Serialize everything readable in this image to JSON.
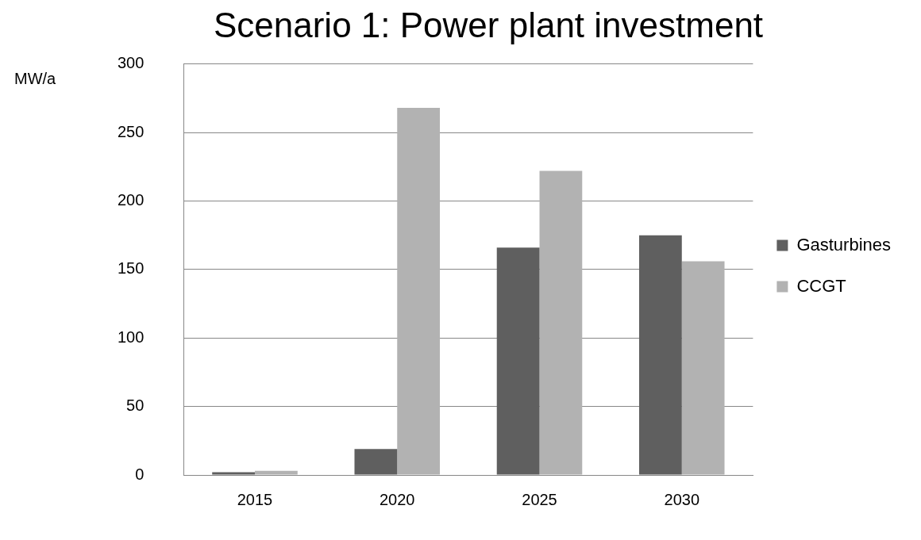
{
  "chart_data": {
    "type": "bar",
    "title": "Scenario 1: Power plant investment",
    "ylabel": "MW/a",
    "categories": [
      "2015",
      "2020",
      "2025",
      "2030"
    ],
    "series": [
      {
        "name": "Gasturbines",
        "color": "#5f5f5f",
        "values": [
          2,
          19,
          166,
          175
        ]
      },
      {
        "name": "CCGT",
        "color": "#b2b2b2",
        "values": [
          3,
          268,
          222,
          156
        ]
      }
    ],
    "ylim": [
      0,
      300
    ],
    "yticks": [
      0,
      50,
      100,
      150,
      200,
      250,
      300
    ],
    "grid": "y",
    "legend": "right"
  }
}
